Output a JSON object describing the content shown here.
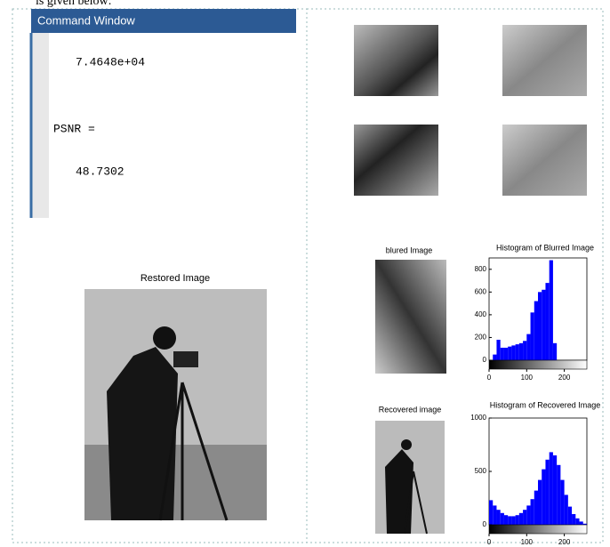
{
  "page": {
    "intro_text": "is given below:",
    "command_window": {
      "title": "Command Window",
      "lines": [
        "7.4648e+04",
        "PSNR =",
        "48.7302"
      ]
    },
    "restored_title": "Restored Image",
    "blurred_title": "blured Image",
    "recovered_title": "Recovered image"
  },
  "chart_data": [
    {
      "type": "histogram",
      "title": "Histogram of Blurred Image",
      "color": "#0000ff",
      "bins": [
        0,
        10,
        20,
        30,
        40,
        50,
        60,
        70,
        80,
        90,
        100,
        110,
        120,
        130,
        140,
        150,
        160,
        170,
        180,
        190,
        200,
        210,
        220,
        230,
        240,
        250,
        260
      ],
      "values": [
        0,
        50,
        180,
        110,
        110,
        120,
        130,
        140,
        150,
        170,
        230,
        420,
        520,
        600,
        620,
        680,
        880,
        150,
        0,
        0,
        0,
        0,
        0,
        0,
        0,
        0
      ],
      "xlim": [
        0,
        260
      ],
      "xticks": [
        0,
        100,
        200
      ],
      "ylim": [
        0,
        900
      ],
      "yticks": [
        0,
        200,
        400,
        600,
        800
      ]
    },
    {
      "type": "histogram",
      "title": "Histogram of Recovered Image",
      "color": "#0000ff",
      "bins": [
        0,
        10,
        20,
        30,
        40,
        50,
        60,
        70,
        80,
        90,
        100,
        110,
        120,
        130,
        140,
        150,
        160,
        170,
        180,
        190,
        200,
        210,
        220,
        230,
        240,
        250,
        260
      ],
      "values": [
        230,
        180,
        140,
        110,
        90,
        80,
        80,
        90,
        110,
        140,
        180,
        240,
        320,
        420,
        520,
        610,
        680,
        650,
        560,
        420,
        280,
        170,
        100,
        60,
        30,
        10
      ],
      "xlim": [
        0,
        260
      ],
      "xticks": [
        0,
        100,
        200
      ],
      "ylim": [
        0,
        1000
      ],
      "yticks": [
        0,
        500,
        1000
      ]
    }
  ]
}
